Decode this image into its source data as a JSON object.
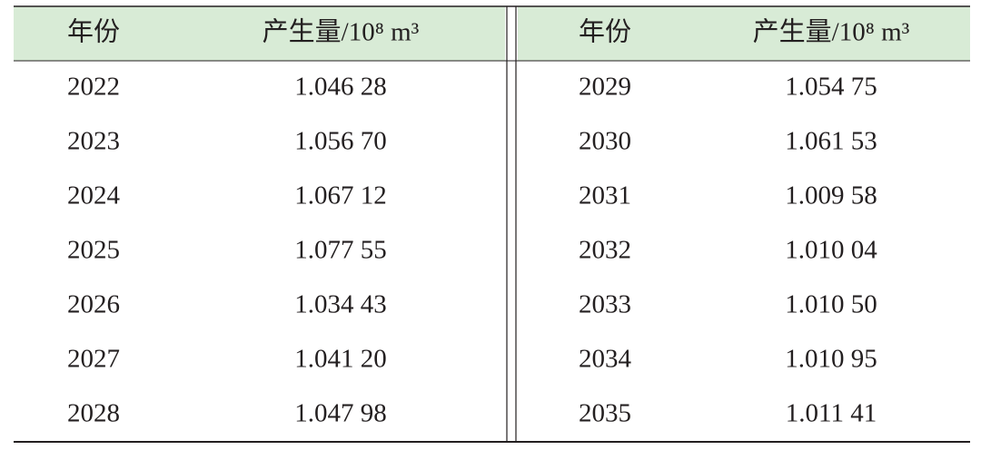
{
  "table": {
    "left": {
      "headers": [
        "年份",
        "产生量/10⁸ m³"
      ],
      "rows": [
        [
          2022,
          "1.046 28"
        ],
        [
          2023,
          "1.056 70"
        ],
        [
          2024,
          "1.067 12"
        ],
        [
          2025,
          "1.077 55"
        ],
        [
          2026,
          "1.034 43"
        ],
        [
          2027,
          "1.041 20"
        ],
        [
          2028,
          "1.047 98"
        ]
      ]
    },
    "right": {
      "headers": [
        "年份",
        "产生量/10⁸ m³"
      ],
      "rows": [
        [
          2029,
          "1.054 75"
        ],
        [
          2030,
          "1.061 53"
        ],
        [
          2031,
          "1.009 58"
        ],
        [
          2032,
          "1.010 04"
        ],
        [
          2033,
          "1.010 50"
        ],
        [
          2034,
          "1.010 95"
        ],
        [
          2035,
          "1.011 41"
        ]
      ]
    }
  }
}
